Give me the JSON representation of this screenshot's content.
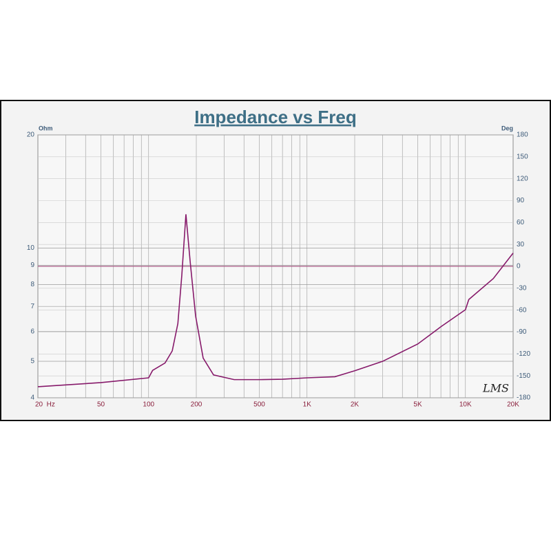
{
  "chart_data": {
    "type": "line",
    "title": "Impedance vs Freq",
    "y_label": "Ohm",
    "y2_label": "Deg",
    "annotation": "LMS",
    "x_scale": "log",
    "y_scale": "log",
    "xlim": [
      20,
      20000
    ],
    "ylim": [
      4,
      20
    ],
    "y2lim": [
      -180,
      180
    ],
    "xticks": [
      {
        "value": 20,
        "label": "20  Hz"
      },
      50,
      100,
      200,
      500,
      {
        "value": 1000,
        "label": "1K"
      },
      {
        "value": 2000,
        "label": "2K"
      },
      {
        "value": 5000,
        "label": "5K"
      },
      {
        "value": 10000,
        "label": "10K"
      },
      {
        "value": 20000,
        "label": "20K"
      }
    ],
    "xgrid": [
      20,
      30,
      40,
      50,
      60,
      70,
      80,
      90,
      100,
      200,
      300,
      400,
      500,
      600,
      700,
      800,
      900,
      1000,
      2000,
      3000,
      4000,
      5000,
      6000,
      7000,
      8000,
      9000,
      10000,
      20000
    ],
    "yticks": [
      4,
      5,
      6,
      7,
      8,
      9,
      10,
      20
    ],
    "y2ticks": [
      -180,
      -150,
      -120,
      -90,
      -60,
      -30,
      0,
      30,
      60,
      90,
      120,
      150,
      180
    ],
    "reference_line": {
      "axis": "y2",
      "value": 0,
      "color": "#b0608a"
    },
    "grid": true,
    "series": [
      {
        "color": "#86196a",
        "x": [
          20,
          50,
          100,
          106,
          127,
          141,
          153,
          162,
          172,
          183,
          198,
          221,
          257,
          347,
          500,
          700,
          1000,
          1500,
          2000,
          3000,
          5000,
          7000,
          10000,
          10500,
          15000,
          20000
        ],
        "values": [
          4.28,
          4.39,
          4.52,
          4.73,
          4.95,
          5.33,
          6.3,
          8.46,
          12.3,
          9.2,
          6.6,
          5.1,
          4.6,
          4.47,
          4.47,
          4.48,
          4.52,
          4.55,
          4.72,
          5.0,
          5.56,
          6.18,
          6.86,
          7.3,
          8.3,
          9.7
        ]
      }
    ]
  }
}
